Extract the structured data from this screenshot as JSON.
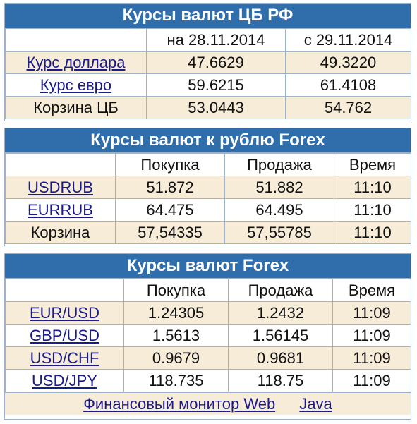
{
  "cbr": {
    "title": "Курсы валют ЦБ РФ",
    "headers": [
      "",
      "на 28.11.2014",
      "с 29.11.2014"
    ],
    "rows": [
      {
        "label": "Курс доллара",
        "v1": "47.6629",
        "v2": "49.3220"
      },
      {
        "label": "Курс евро",
        "v1": "59.6215",
        "v2": "61.4108"
      },
      {
        "label": "Корзина ЦБ",
        "v1": "53.0443",
        "v2": "54.762"
      }
    ]
  },
  "forex_rub": {
    "title": "Курсы валют к рублю Forex",
    "headers": [
      "",
      "Покупка",
      "Продажа",
      "Время"
    ],
    "rows": [
      {
        "label": "USDRUB",
        "buy": "51.872",
        "sell": "51.882",
        "time": "11:10"
      },
      {
        "label": "EURRUB",
        "buy": "64.475",
        "sell": "64.495",
        "time": "11:10"
      },
      {
        "label": "Корзина",
        "buy": "57,54335",
        "sell": "57,55785",
        "time": "11:10"
      }
    ]
  },
  "forex": {
    "title": "Курсы валют Forex",
    "headers": [
      "",
      "Покупка",
      "Продажа",
      "Время"
    ],
    "rows": [
      {
        "label": "EUR/USD",
        "buy": "1.24305",
        "sell": "1.2432",
        "time": "11:09"
      },
      {
        "label": "GBP/USD",
        "buy": "1.5613",
        "sell": "1.56145",
        "time": "11:09"
      },
      {
        "label": "USD/CHF",
        "buy": "0.9679",
        "sell": "0.9681",
        "time": "11:09"
      },
      {
        "label": "USD/JPY",
        "buy": "118.735",
        "sell": "118.75",
        "time": "11:09"
      }
    ]
  },
  "footer": {
    "monitor_link": "Финансовый монитор Web",
    "java_link": "Java"
  }
}
